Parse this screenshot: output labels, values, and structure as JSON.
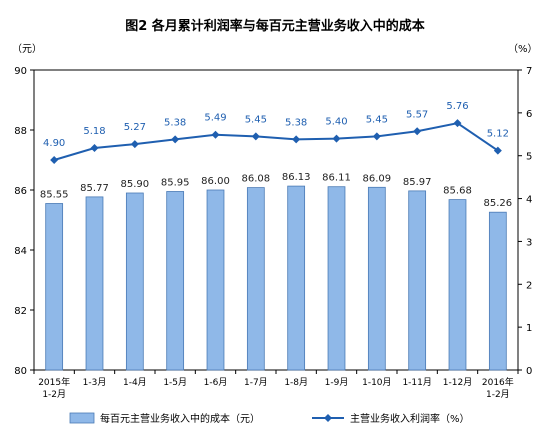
{
  "chart_data": {
    "type": "bar",
    "title": "图2  各月累计利润率与每百元主营业务收入中的成本",
    "left_unit": "（元）",
    "right_unit": "（%）",
    "categories": [
      [
        "2015年",
        "1-2月"
      ],
      [
        "1-3月"
      ],
      [
        "1-4月"
      ],
      [
        "1-5月"
      ],
      [
        "1-6月"
      ],
      [
        "1-7月"
      ],
      [
        "1-8月"
      ],
      [
        "1-9月"
      ],
      [
        "1-10月"
      ],
      [
        "1-11月"
      ],
      [
        "1-12月"
      ],
      [
        "2016年",
        "1-2月"
      ]
    ],
    "series": [
      {
        "name": "每百元主营业务收入中的成本（元）",
        "type": "bar",
        "axis": "left",
        "color": "#8fb8e8",
        "values": [
          85.55,
          85.77,
          85.9,
          85.95,
          86.0,
          86.08,
          86.13,
          86.11,
          86.09,
          85.97,
          85.68,
          85.26
        ],
        "labels": [
          "85.55",
          "85.77",
          "85.90",
          "85.95",
          "86.00",
          "86.08",
          "86.13",
          "86.11",
          "86.09",
          "85.97",
          "85.68",
          "85.26"
        ]
      },
      {
        "name": "主营业务收入利润率（%）",
        "type": "line",
        "axis": "right",
        "color": "#1f5fb0",
        "values": [
          4.9,
          5.18,
          5.27,
          5.38,
          5.49,
          5.45,
          5.38,
          5.4,
          5.45,
          5.57,
          5.76,
          5.12
        ],
        "labels": [
          "4.90",
          "5.18",
          "5.27",
          "5.38",
          "5.49",
          "5.45",
          "5.38",
          "5.40",
          "5.45",
          "5.57",
          "5.76",
          "5.12"
        ]
      }
    ],
    "ylim_left": [
      80,
      90
    ],
    "yticks_left": [
      "80",
      "82",
      "84",
      "86",
      "88",
      "90"
    ],
    "ylim_right": [
      0,
      7
    ],
    "yticks_right": [
      "0",
      "1",
      "2",
      "3",
      "4",
      "5",
      "6",
      "7"
    ],
    "legend_position": "bottom",
    "grid": false
  }
}
